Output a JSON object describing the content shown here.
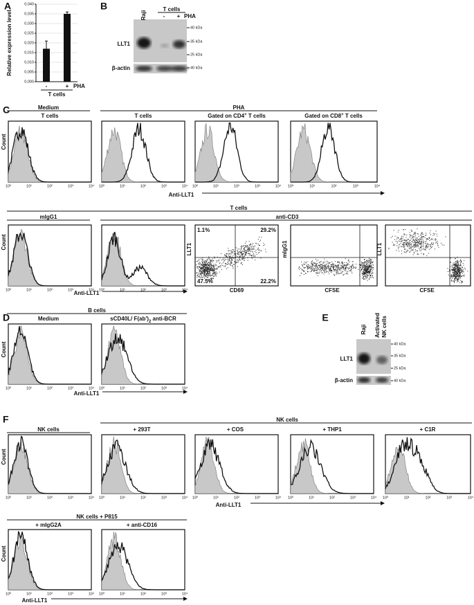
{
  "chart_data": {
    "type": "bar",
    "panel": "A",
    "ylabel": "Relative expression level",
    "categories": [
      "-",
      "+"
    ],
    "values": [
      0.017,
      0.035
    ],
    "errors": [
      0.004,
      0.001
    ],
    "color": "#111111",
    "ylim": [
      0,
      0.04
    ],
    "yticks": [
      {
        "value": 0,
        "label": "0,000"
      },
      {
        "value": 0.005,
        "label": "0,005"
      },
      {
        "value": 0.01,
        "label": "0,010"
      },
      {
        "value": 0.015,
        "label": "0,015"
      },
      {
        "value": 0.02,
        "label": "0,020"
      },
      {
        "value": 0.025,
        "label": "0,025"
      },
      {
        "value": 0.03,
        "label": "0,030"
      },
      {
        "value": 0.035,
        "label": "0,035"
      },
      {
        "value": 0.04,
        "label": "0,040"
      }
    ],
    "grid": true,
    "annotation": "PHA",
    "group_label": "T cells"
  },
  "panel_labels": {
    "B": "B",
    "C": "C",
    "D": "D",
    "E": "E",
    "F": "F"
  },
  "axis": {
    "count": "Count",
    "x": "Anti-LLT1",
    "ticks": [
      "10⁰",
      "10¹",
      "10²",
      "10³",
      "10⁴"
    ]
  },
  "blot_B": {
    "lanes": [
      "Raji",
      "T cells",
      "-",
      "+",
      "PHA"
    ],
    "rows": [
      "LLT1",
      "β-actin"
    ],
    "markers": [
      "40 kDa",
      "35 kDa",
      "25 kDa",
      "40 kDa"
    ]
  },
  "C": {
    "row1": {
      "medium": "Medium",
      "t_cells": "T cells",
      "pha": "PHA",
      "pha_t": "T cells",
      "cd4": {
        "prefix": "Gated on CD4",
        "sup": "+",
        "suffix": " T cells"
      },
      "cd8": {
        "prefix": "Gated on CD8",
        "sup": "+",
        "suffix": " T cells"
      }
    },
    "row2": {
      "t_cells": "T cells",
      "migg1": "mIgG1",
      "anti_cd3": "anti-CD3",
      "scatter1": {
        "y": "LLT1",
        "x": "CD69",
        "quadrants": [
          "1.1%",
          "29.2%",
          "47.5%",
          "22.2%"
        ]
      },
      "scatter2": {
        "y": "mIgG1",
        "x": "CFSE"
      },
      "scatter3": {
        "y": "LLT1",
        "x": "CFSE"
      }
    }
  },
  "D": {
    "b_cells": "B cells",
    "medium": "Medium",
    "stim": {
      "text": "sCD40L/ F(ab')",
      "sub": "2",
      "suffix": " anti-BCR"
    }
  },
  "blot_E": {
    "lanes": [
      "Raji",
      "Activated",
      "NK cells"
    ],
    "rows": [
      "LLT1",
      "β-actin"
    ],
    "markers": [
      "40 kDa",
      "35 kDa",
      "25 kDa",
      "40 kDa"
    ]
  },
  "F": {
    "row1": {
      "nk": "NK cells",
      "nk_header": "NK cells",
      "boxes": [
        "+ 293T",
        "+ COS",
        "+ THP1",
        "+ C1R"
      ]
    },
    "row2": {
      "header": "NK cells + P815",
      "boxes": [
        "+ mIgG2A",
        "+ anti-CD16"
      ]
    }
  }
}
